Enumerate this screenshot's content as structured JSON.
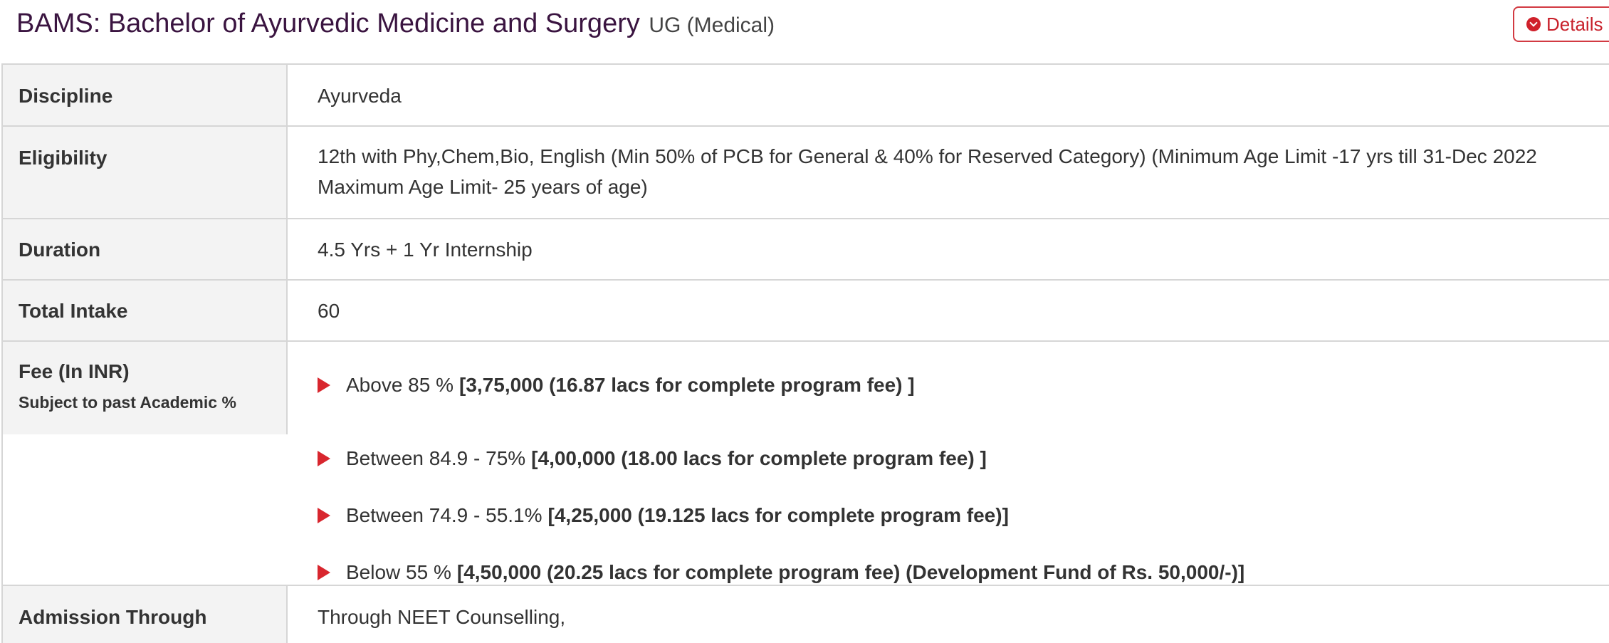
{
  "header": {
    "title": "BAMS: Bachelor of Ayurvedic Medicine and Surgery",
    "subtitle": "UG (Medical)",
    "details_label": "Details",
    "details_icon": "chevron-circle-down-icon",
    "accent_color": "#d0212b"
  },
  "rows": {
    "discipline": {
      "label": "Discipline",
      "value": "Ayurveda"
    },
    "eligibility": {
      "label": "Eligibility",
      "value": "12th with Phy,Chem,Bio, English (Min 50% of PCB for General & 40% for Reserved Category) (Minimum Age Limit -17 yrs till 31-Dec 2022 Maximum Age Limit- 25 years of age)"
    },
    "duration": {
      "label": "Duration",
      "value": "4.5 Yrs + 1 Yr Internship"
    },
    "intake": {
      "label": "Total Intake",
      "value": "60"
    },
    "fee": {
      "label": "Fee (In INR)",
      "sublabel": "Subject to past Academic %",
      "items": [
        {
          "range": "Above 85 %",
          "amount": "[3,75,000 (16.87 lacs for complete program fee) ]"
        },
        {
          "range": "Between 84.9 - 75%",
          "amount": "[4,00,000 (18.00 lacs for complete program fee) ]"
        },
        {
          "range": "Between 74.9 - 55.1%",
          "amount": "[4,25,000 (19.125 lacs for complete program fee)]"
        },
        {
          "range": "Below 55 %",
          "amount": "[4,50,000 (20.25 lacs for complete program fee) (Development Fund of Rs. 50,000/-)]"
        }
      ]
    },
    "admission": {
      "label": "Admission Through",
      "value": "Through NEET Counselling,"
    }
  }
}
